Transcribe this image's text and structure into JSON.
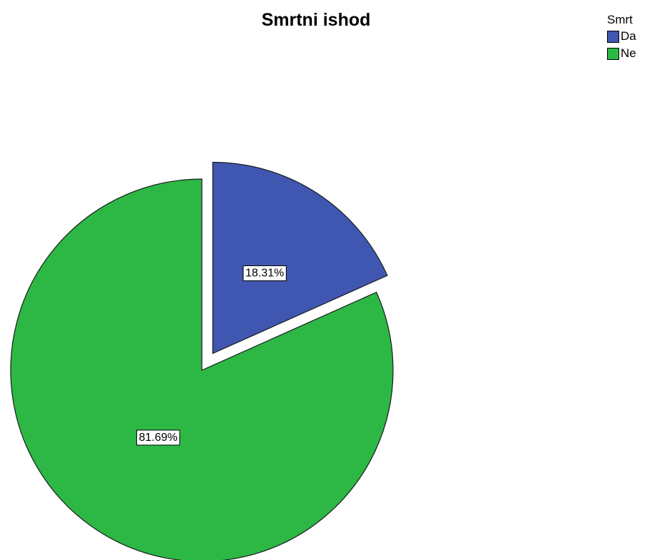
{
  "chart_data": {
    "type": "pie",
    "title": "Smrtni ishod",
    "legend_title": "Smrt",
    "legend_position": "top-right",
    "slices": [
      {
        "name": "Da",
        "value": 18.31,
        "label": "18.31%",
        "color": "#3f57b0",
        "exploded": true
      },
      {
        "name": "Ne",
        "value": 81.69,
        "label": "81.69%",
        "color": "#2db845",
        "exploded": false
      }
    ]
  }
}
